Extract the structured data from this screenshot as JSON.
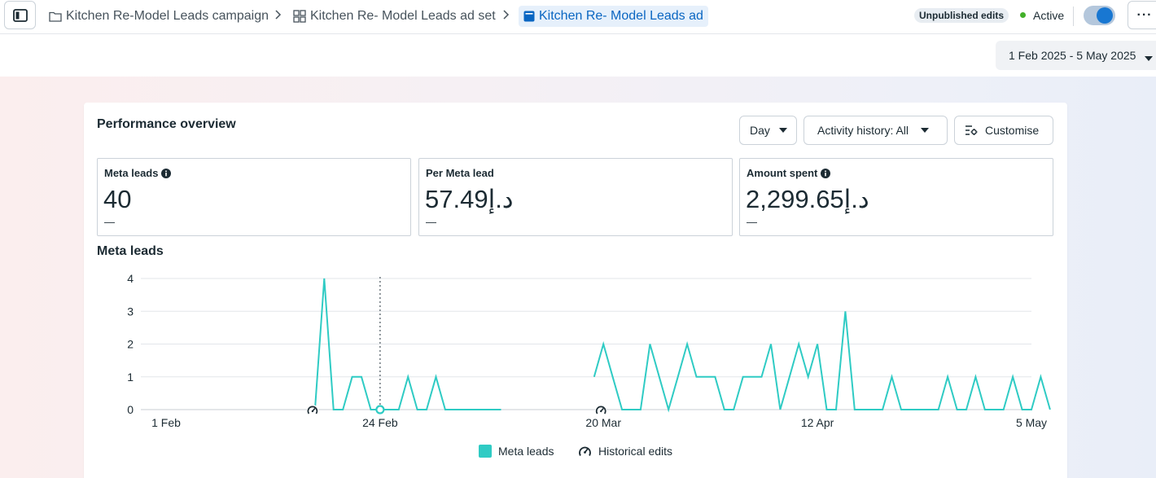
{
  "breadcrumb": {
    "campaign": "Kitchen Re-Model Leads campaign",
    "ad_set": "Kitchen Re- Model Leads ad set",
    "ad": "Kitchen Re- Model Leads ad"
  },
  "status": {
    "unpublished": "Unpublished edits",
    "active_label": "Active",
    "active_color": "#43b02a",
    "toggle_on": true
  },
  "more_label": "···",
  "date_range": "1 Feb 2025 - 5 May 2025",
  "card": {
    "title": "Performance overview",
    "controls": {
      "granularity": "Day",
      "activity": "Activity history: All",
      "customise": "Customise"
    }
  },
  "metrics": [
    {
      "label": "Meta leads",
      "value": "40",
      "change": "—",
      "info": true
    },
    {
      "label": "Per Meta lead",
      "value": "57.49د.إ",
      "change": "—",
      "info": false
    },
    {
      "label": "Amount spent",
      "value": "2,299.65د.إ",
      "change": "—",
      "info": true
    }
  ],
  "chart_title": "Meta leads",
  "accent_color": "#2fcbc4",
  "chart_data": {
    "type": "line",
    "y_ticks": [
      "0",
      "1",
      "2",
      "3",
      "4"
    ],
    "ylim": [
      0,
      4
    ],
    "grid": true,
    "x_ticks": [
      {
        "label": "1 Feb",
        "day": 0
      },
      {
        "label": "24 Feb",
        "day": 23
      },
      {
        "label": "20 Mar",
        "day": 47
      },
      {
        "label": "12 Apr",
        "day": 70
      },
      {
        "label": "5 May",
        "day": 93
      }
    ],
    "series": [
      {
        "name": "Meta leads",
        "color": "#2fcbc4",
        "segments": [
          [
            [
              16,
              0
            ],
            [
              17,
              4
            ],
            [
              18,
              0
            ],
            [
              19,
              0
            ],
            [
              20,
              1
            ],
            [
              21,
              1
            ],
            [
              22,
              0
            ],
            [
              23,
              0
            ],
            [
              24,
              0
            ],
            [
              25,
              0
            ],
            [
              26,
              1
            ],
            [
              27,
              0
            ],
            [
              28,
              0
            ],
            [
              29,
              1
            ],
            [
              30,
              0
            ],
            [
              31,
              0
            ],
            [
              32,
              0
            ],
            [
              33,
              0
            ],
            [
              34,
              0
            ],
            [
              35,
              0
            ],
            [
              36,
              0
            ]
          ],
          [
            [
              46,
              1
            ],
            [
              47,
              2
            ],
            [
              48,
              1
            ],
            [
              49,
              0
            ],
            [
              50,
              0
            ],
            [
              51,
              0
            ],
            [
              52,
              2
            ],
            [
              53,
              1
            ],
            [
              54,
              0
            ],
            [
              55,
              1
            ],
            [
              56,
              2
            ],
            [
              57,
              1
            ],
            [
              58,
              1
            ],
            [
              59,
              1
            ],
            [
              60,
              0
            ],
            [
              61,
              0
            ],
            [
              62,
              1
            ],
            [
              63,
              1
            ],
            [
              64,
              1
            ],
            [
              65,
              2
            ],
            [
              66,
              0
            ],
            [
              67,
              1
            ],
            [
              68,
              2
            ],
            [
              69,
              1
            ],
            [
              70,
              2
            ],
            [
              71,
              0
            ],
            [
              72,
              0
            ],
            [
              73,
              3
            ],
            [
              74,
              0
            ],
            [
              75,
              0
            ],
            [
              76,
              0
            ],
            [
              77,
              0
            ],
            [
              78,
              1
            ],
            [
              79,
              0
            ],
            [
              80,
              0
            ],
            [
              81,
              0
            ],
            [
              82,
              0
            ],
            [
              83,
              0
            ],
            [
              84,
              1
            ],
            [
              85,
              0
            ],
            [
              86,
              0
            ],
            [
              87,
              1
            ],
            [
              88,
              0
            ],
            [
              89,
              0
            ],
            [
              90,
              0
            ],
            [
              91,
              1
            ],
            [
              92,
              0
            ],
            [
              93,
              0
            ],
            [
              94,
              1
            ],
            [
              95,
              0
            ]
          ]
        ]
      }
    ],
    "edit_markers_days": [
      16,
      47
    ],
    "selected_day": 23,
    "legend": [
      "Meta leads",
      "Historical edits"
    ]
  }
}
